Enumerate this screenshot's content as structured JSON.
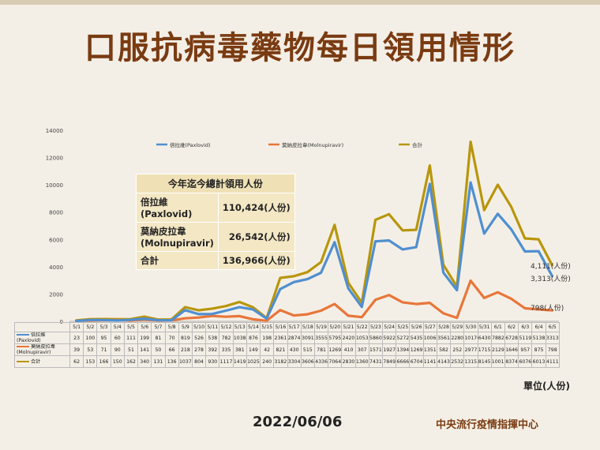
{
  "title": "口服抗病毒藥物每日領用情形",
  "date_text": "2022/06/06",
  "org_text": "中央流行疫情指揮中心",
  "unit_text": "單位(人份)",
  "summary": {
    "heading": "今年迄今總計領用人份",
    "rows": [
      {
        "label": "倍拉維\n(Paxlovid)",
        "value": "110,424(人份)"
      },
      {
        "label": "莫納皮拉韋\n(Molnupiravir)",
        "value": "26,542(人份)"
      },
      {
        "label": "合計",
        "value": "136,966(人份)"
      }
    ]
  },
  "end_labels": [
    "4,111(人份)",
    "3,313(人份)",
    "798(人份)"
  ],
  "chart_data": {
    "type": "line",
    "y_ticks": [
      0,
      2000,
      4000,
      6000,
      8000,
      10000,
      12000,
      14000
    ],
    "ylim": [
      0,
      14000
    ],
    "grid": false,
    "legend_position": "top",
    "categories": [
      "5/1",
      "5/2",
      "5/3",
      "5/4",
      "5/5",
      "5/6",
      "5/7",
      "5/8",
      "5/9",
      "5/10",
      "5/11",
      "5/12",
      "5/13",
      "5/14",
      "5/15",
      "5/16",
      "5/17",
      "5/18",
      "5/19",
      "5/20",
      "5/21",
      "5/22",
      "5/23",
      "5/24",
      "5/25",
      "5/26",
      "5/27",
      "5/28",
      "5/29",
      "5/30",
      "5/31",
      "6/1",
      "6/2",
      "6/3",
      "6/4",
      "6/5"
    ],
    "series": [
      {
        "name": "倍拉維(Paxlovid)",
        "table_label": "倍拉維(Paxlovid)",
        "color": "#4f8fd0",
        "values": [
          23,
          100,
          95,
          60,
          111,
          199,
          81,
          70,
          819,
          526,
          538,
          782,
          1038,
          876,
          198,
          2361,
          2874,
          3091,
          3555,
          5795,
          2420,
          1053,
          5860,
          5922,
          5272,
          5435,
          10066,
          3561,
          2280,
          10176,
          6430,
          7882,
          6728,
          5119,
          5138,
          3313
        ]
      },
      {
        "name": "莫納皮拉韋(Molnupiravir)",
        "table_label": "莫納皮拉韋\n(Molnupiravir)",
        "color": "#e8763a",
        "values": [
          39,
          53,
          71,
          90,
          51,
          141,
          50,
          66,
          218,
          278,
          392,
          335,
          381,
          149,
          42,
          821,
          430,
          515,
          781,
          1269,
          410,
          307,
          1571,
          1927,
          1394,
          1269,
          1351,
          582,
          252,
          2977,
          1715,
          2129,
          1646,
          957,
          875,
          798
        ]
      },
      {
        "name": "合計",
        "table_label": "合計",
        "color": "#b8960c",
        "values": [
          62,
          153,
          166,
          150,
          162,
          340,
          131,
          136,
          1037,
          804,
          930,
          1117,
          1419,
          1025,
          240,
          3182,
          3304,
          3606,
          4336,
          7064,
          2830,
          1360,
          7431,
          7849,
          6666,
          6704,
          11417,
          4143,
          2532,
          13153,
          8145,
          10011,
          8374,
          6076,
          6013,
          4111
        ]
      }
    ]
  }
}
